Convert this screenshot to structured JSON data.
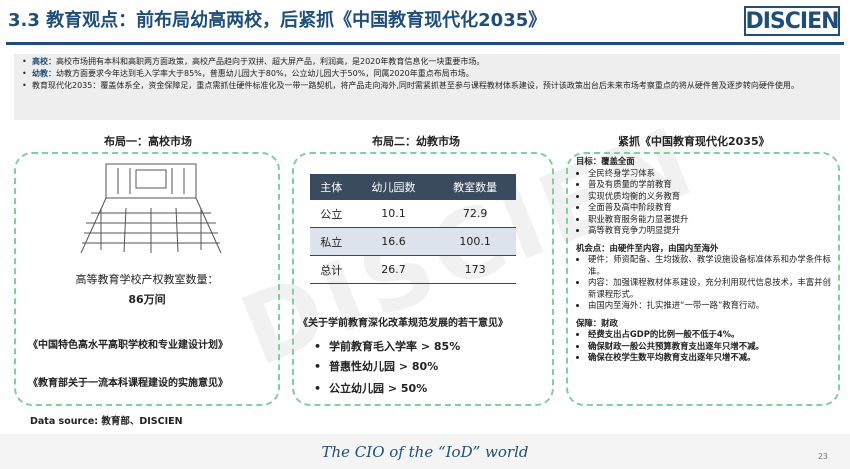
{
  "header": {
    "title": "3.3 教育观点：前布局幼高两校，后紧抓《中国教育现代化2035》",
    "logo_text": "DISCIEN"
  },
  "intro": [
    {
      "key": "高校：",
      "text": "高校市场拥有本科和高职两方面政策，高校产品趋向于双拼、超大屏产品，利润高，是2020年教育信息化一块重要市场。"
    },
    {
      "key": "幼教：",
      "text": "幼教方面要求今年达到毛入学率大于85%，普惠幼儿园大于80%，公立幼儿园大于50%，同属2020年重点布局市场。"
    },
    {
      "key": "",
      "text": "教育现代化2035：覆盖体系全，资金保障足，重点需抓住硬件标准化及一带一路契机，将产品走向海外,同时需紧抓甚至参与课程教材体系建设，预计该政策出台后未来市场考察重点的将从硬件普及逐步转向硬件使用。"
    }
  ],
  "col1": {
    "title": "布局一：高校市场",
    "stat_label": "高等教育学校产权教室数量：",
    "stat_value": "86万间",
    "ref1": "《中国特色高水平高职学校和专业建设计划》",
    "ref2": "《教育部关于一流本科课程建设的实施意见》"
  },
  "col2": {
    "title": "布局二：幼教市场",
    "table": {
      "headers": [
        "主体",
        "幼儿园数",
        "教室数量"
      ],
      "rows": [
        [
          "公立",
          "10.1",
          "72.9"
        ],
        [
          "私立",
          "16.6",
          "100.1"
        ],
        [
          "总计",
          "26.7",
          "173"
        ]
      ]
    },
    "ref": "《关于学前教育深化改革规范发展的若干意见》",
    "bullets": [
      "学前教育毛入学率 > 85%",
      "普惠性幼儿园 > 80%",
      "公立幼儿园 > 50%"
    ]
  },
  "col3": {
    "title": "紧抓《中国教育现代化2035》",
    "goal_head": "目标：覆盖全面",
    "goals": [
      "全民终身学习体系",
      "普及有质量的学前教育",
      "实现优质均衡的义务教育",
      "全面普及高中阶段教育",
      "职业教育服务能力显著提升",
      "高等教育竞争力明显提升"
    ],
    "opp_head": "机会点：由硬件至内容，由国内至海外",
    "opps": [
      "硬件：师资配备、生均拨款、教学设施设备标准体系和办学条件标准。",
      "内容：加强课程教材体系建设，充分利用现代信息技术，丰富并创新课程形式。",
      "由国内至海外：扎实推进“一带一路”教育行动。"
    ],
    "fund_head": "保障：财政",
    "funds": [
      "经费支出占GDP的比例一般不低于4%。",
      "确保财政一般公共预算教育支出逐年只增不减。",
      "确保在校学生数平均教育支出逐年只增不减。"
    ]
  },
  "footer": {
    "source": "Data source: 教育部、DISCIEN",
    "tagline": "The CIO of the “IoD” world",
    "page": "23"
  }
}
